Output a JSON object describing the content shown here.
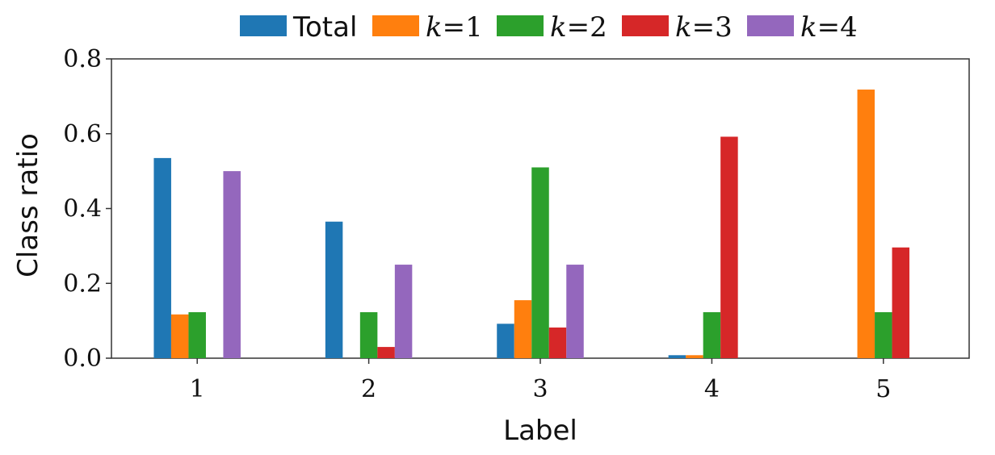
{
  "chart_data": {
    "type": "bar",
    "title": "",
    "xlabel": "Label",
    "ylabel": "Class ratio",
    "categories": [
      "1",
      "2",
      "3",
      "4",
      "5"
    ],
    "ylim": [
      0,
      0.8
    ],
    "yticks": [
      "0.0",
      "0.2",
      "0.4",
      "0.6",
      "0.8"
    ],
    "grid": false,
    "legend_position": "top-center, above plot",
    "series": [
      {
        "name": "Total",
        "legend_label": "Total",
        "color": "#1f77b4",
        "values": [
          0.535,
          0.365,
          0.092,
          0.008,
          0.0
        ]
      },
      {
        "name": "k=1",
        "legend_var": "k",
        "legend_rest": "=1",
        "color": "#ff7f0e",
        "values": [
          0.117,
          0.0,
          0.155,
          0.008,
          0.718
        ]
      },
      {
        "name": "k=2",
        "legend_var": "k",
        "legend_rest": "=2",
        "color": "#2ca02c",
        "values": [
          0.123,
          0.123,
          0.51,
          0.123,
          0.123
        ]
      },
      {
        "name": "k=3",
        "legend_var": "k",
        "legend_rest": "=3",
        "color": "#d62728",
        "values": [
          0.0,
          0.03,
          0.082,
          0.592,
          0.296
        ]
      },
      {
        "name": "k=4",
        "legend_var": "k",
        "legend_rest": "=4",
        "color": "#9467bd",
        "values": [
          0.5,
          0.25,
          0.25,
          0.0,
          0.0
        ]
      }
    ]
  }
}
